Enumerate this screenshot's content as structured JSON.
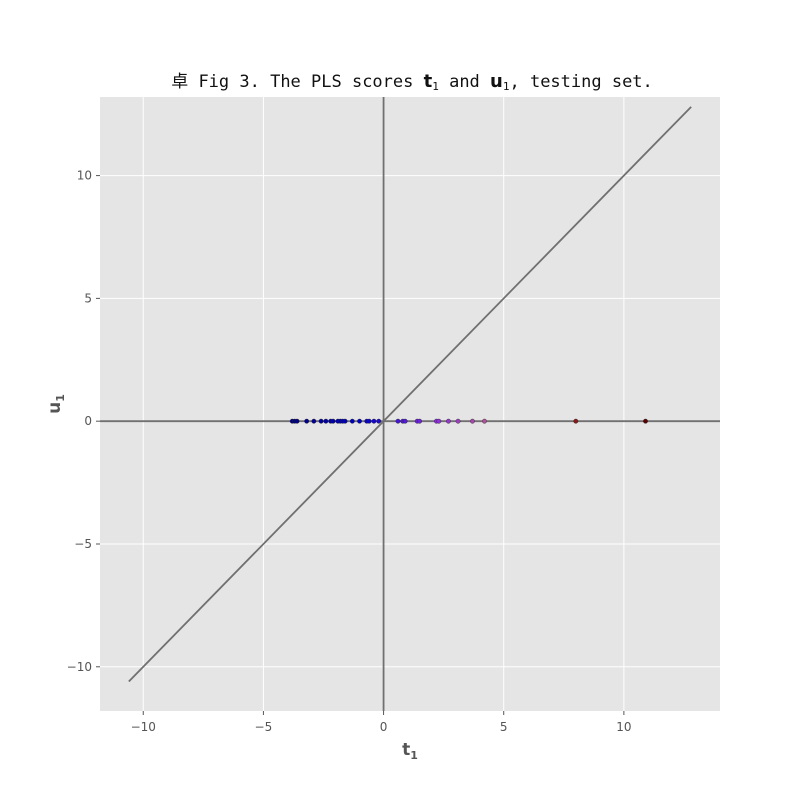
{
  "chart_data": {
    "type": "scatter",
    "title": {
      "prefix": "卓 Fig 3. The PLS scores ",
      "var1": "t",
      "var1_sub": "1",
      "middle": " and ",
      "var2": "u",
      "var2_sub": "1",
      "suffix": ", testing set."
    },
    "xlabel": {
      "main": "t",
      "sub": "1"
    },
    "ylabel": {
      "main": "u",
      "sub": "1"
    },
    "xlim": [
      -11.8,
      14.0
    ],
    "ylim": [
      -11.8,
      13.2
    ],
    "xticks": [
      -10,
      -5,
      0,
      5,
      10
    ],
    "yticks": [
      -10,
      -5,
      0,
      5,
      10
    ],
    "xtick_labels": [
      "−10",
      "−5",
      "0",
      "5",
      "10"
    ],
    "ytick_labels": [
      "−10",
      "−5",
      "0",
      "5",
      "10"
    ],
    "grid": true,
    "background": "#e5e5e5",
    "grid_color": "#ffffff",
    "reference_lines": [
      {
        "name": "identity",
        "x": [
          -10.6,
          12.8
        ],
        "y": [
          -10.6,
          12.8
        ],
        "color": "#707070"
      },
      {
        "name": "horizontal-zero",
        "y": 0,
        "color": "#707070"
      },
      {
        "name": "vertical-zero",
        "x": 0,
        "color": "#707070"
      }
    ],
    "colormap": [
      "#00007f",
      "#0000cc",
      "#8a2be2",
      "#c06080",
      "#8b1a1a",
      "#5a0000"
    ],
    "points": [
      {
        "x": -3.8,
        "y": 0
      },
      {
        "x": -3.7,
        "y": 0
      },
      {
        "x": -3.6,
        "y": 0
      },
      {
        "x": -3.2,
        "y": 0
      },
      {
        "x": -2.9,
        "y": 0
      },
      {
        "x": -2.6,
        "y": 0
      },
      {
        "x": -2.4,
        "y": 0
      },
      {
        "x": -2.2,
        "y": 0
      },
      {
        "x": -2.1,
        "y": 0
      },
      {
        "x": -1.9,
        "y": 0
      },
      {
        "x": -1.8,
        "y": 0
      },
      {
        "x": -1.7,
        "y": 0
      },
      {
        "x": -1.6,
        "y": 0
      },
      {
        "x": -1.3,
        "y": 0
      },
      {
        "x": -1.0,
        "y": 0
      },
      {
        "x": -0.7,
        "y": 0
      },
      {
        "x": -0.6,
        "y": 0
      },
      {
        "x": -0.4,
        "y": 0
      },
      {
        "x": -0.2,
        "y": 0
      },
      {
        "x": 0.6,
        "y": 0
      },
      {
        "x": 0.8,
        "y": 0
      },
      {
        "x": 0.9,
        "y": 0
      },
      {
        "x": 1.4,
        "y": 0
      },
      {
        "x": 1.5,
        "y": 0
      },
      {
        "x": 2.2,
        "y": 0
      },
      {
        "x": 2.3,
        "y": 0
      },
      {
        "x": 2.7,
        "y": 0
      },
      {
        "x": 3.1,
        "y": 0
      },
      {
        "x": 3.7,
        "y": 0
      },
      {
        "x": 4.2,
        "y": 0
      },
      {
        "x": 8.0,
        "y": 0
      },
      {
        "x": 10.9,
        "y": 0
      }
    ]
  }
}
